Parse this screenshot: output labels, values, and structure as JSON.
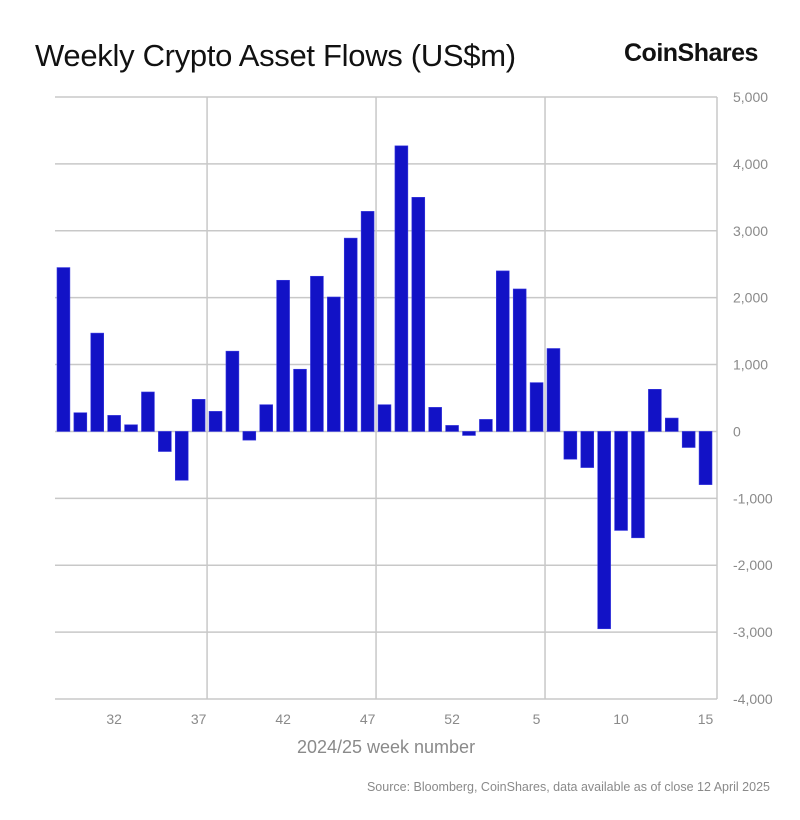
{
  "header": {
    "title": "Weekly Crypto Asset Flows (US$m)",
    "logo": "CoinShares"
  },
  "footer": {
    "source": "Source: Bloomberg, CoinShares, data available as of close 12 April 2025"
  },
  "colors": {
    "bar": "#1212c6",
    "grid": "#c8c8c8",
    "text": "#8a8a8a"
  },
  "chart_data": {
    "type": "bar",
    "title": "Weekly Crypto Asset Flows (US$m)",
    "xlabel": "2024/25 week number",
    "ylabel": "",
    "ylim": [
      -4000,
      5000
    ],
    "y_ticks": [
      5000,
      4000,
      3000,
      2000,
      1000,
      0,
      -1000,
      -2000,
      -3000,
      -4000
    ],
    "y_tick_labels": [
      "5,000",
      "4,000",
      "3,000",
      "2,000",
      "1,000",
      "0",
      "-1,000",
      "-2,000",
      "-3,000",
      "-4,000"
    ],
    "x_tick_labels": [
      "32",
      "37",
      "42",
      "47",
      "52",
      "5",
      "10",
      "15"
    ],
    "y_axis_position": "right",
    "grid": true,
    "categories": [
      "29",
      "30",
      "31",
      "32",
      "33",
      "34",
      "35",
      "36",
      "37",
      "38",
      "39",
      "40",
      "41",
      "42",
      "43",
      "44",
      "45",
      "46",
      "47",
      "48",
      "49",
      "50",
      "51",
      "52",
      "1",
      "2",
      "3",
      "4",
      "5",
      "6",
      "7",
      "8",
      "9",
      "10",
      "11",
      "12",
      "13",
      "14",
      "15"
    ],
    "values": [
      2450,
      280,
      1470,
      240,
      100,
      590,
      -300,
      -730,
      480,
      300,
      1200,
      -130,
      400,
      2260,
      930,
      2320,
      2010,
      2890,
      3290,
      400,
      4270,
      3500,
      360,
      90,
      -60,
      180,
      2400,
      2130,
      730,
      1240,
      -415,
      -540,
      -2950,
      -1480,
      -1590,
      630,
      200,
      -240,
      -795
    ]
  }
}
